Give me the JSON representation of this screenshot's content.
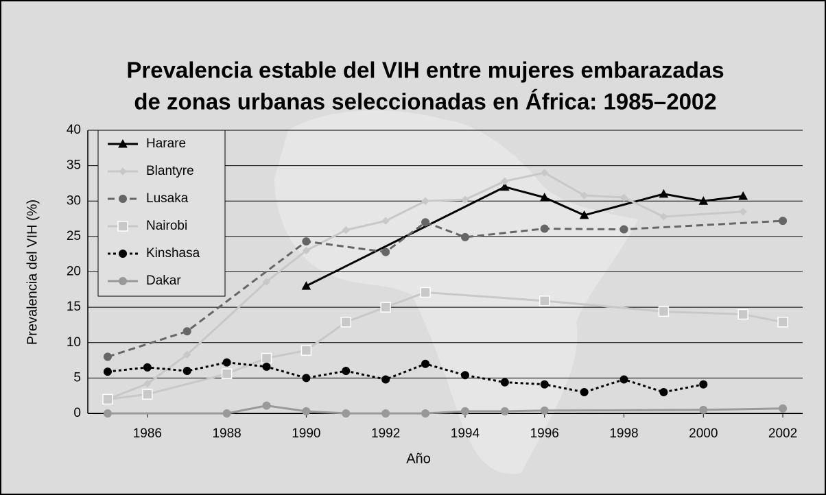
{
  "chart_data": {
    "type": "line",
    "title": [
      "Prevalencia estable del VIH entre mujeres embarazadas",
      "de zonas urbanas seleccionadas en África: 1985–2002"
    ],
    "xlabel": "Año",
    "ylabel": "Prevalencia del VIH (%)",
    "xlim": [
      1984.5,
      2002.5
    ],
    "xticks": [
      1986,
      1988,
      1990,
      1992,
      1994,
      1996,
      1998,
      2000,
      2002
    ],
    "ylim": [
      0,
      40
    ],
    "yticks": [
      0,
      5,
      10,
      15,
      20,
      25,
      30,
      35,
      40
    ],
    "grid": true,
    "legend": "upper left",
    "series": [
      {
        "name": "Harare",
        "color": "#000000",
        "marker": "triangle",
        "dash": "solid",
        "x": [
          1990,
          1995,
          1996,
          1997,
          1999,
          2000,
          2001
        ],
        "values": [
          18,
          32,
          30.5,
          28,
          31,
          30,
          30.7
        ]
      },
      {
        "name": "Blantyre",
        "color": "#c8c8c8",
        "marker": "diamond",
        "dash": "solid",
        "x": [
          1985,
          1986,
          1987,
          1989,
          1990,
          1991,
          1992,
          1993,
          1994,
          1995,
          1996,
          1997,
          1998,
          1999,
          2001
        ],
        "values": [
          2,
          4.2,
          8.3,
          18.6,
          23,
          25.9,
          27.2,
          30,
          30.2,
          32.8,
          34,
          30.8,
          30.5,
          27.8,
          28.5
        ]
      },
      {
        "name": "Lusaka",
        "color": "#666666",
        "marker": "circle",
        "dash": "dashed",
        "x": [
          1985,
          1987,
          1990,
          1992,
          1993,
          1994,
          1996,
          1998,
          2002
        ],
        "values": [
          8,
          11.6,
          24.3,
          22.8,
          27,
          24.9,
          26.1,
          26,
          27.2
        ]
      },
      {
        "name": "Nairobi",
        "color": "#c8c8c8",
        "marker": "square",
        "dash": "solid",
        "x": [
          1985,
          1986,
          1988,
          1989,
          1990,
          1991,
          1992,
          1993,
          1996,
          1999,
          2001,
          2002
        ],
        "values": [
          2,
          2.7,
          5.6,
          7.8,
          8.9,
          12.9,
          15,
          17.1,
          15.9,
          14.4,
          14,
          12.9
        ]
      },
      {
        "name": "Kinshasa",
        "color": "#000000",
        "marker": "circle",
        "dash": "dotted",
        "x": [
          1985,
          1986,
          1987,
          1988,
          1989,
          1990,
          1991,
          1992,
          1993,
          1994,
          1995,
          1996,
          1997,
          1998,
          1999,
          2000
        ],
        "values": [
          5.9,
          6.5,
          6,
          7.2,
          6.6,
          5,
          6,
          4.8,
          7,
          5.4,
          4.4,
          4.1,
          3,
          4.8,
          3,
          4.1
        ]
      },
      {
        "name": "Dakar",
        "color": "#999999",
        "marker": "circle",
        "dash": "solid",
        "x": [
          1985,
          1988,
          1989,
          1990,
          1991,
          1992,
          1993,
          1994,
          1995,
          1996,
          2000,
          2002
        ],
        "values": [
          0,
          0,
          1.1,
          0.3,
          0,
          0,
          0,
          0.3,
          0.3,
          0.4,
          0.5,
          0.7
        ]
      }
    ]
  }
}
